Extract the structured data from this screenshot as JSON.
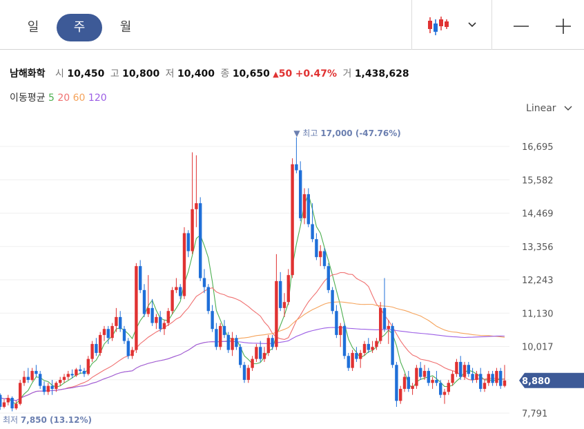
{
  "tabs": [
    {
      "label": "일",
      "active": false
    },
    {
      "label": "주",
      "active": true
    },
    {
      "label": "월",
      "active": false
    }
  ],
  "toolbar": {
    "chart_type_icon": "candlestick-icon",
    "dropdown_icon": "chevron-down-icon",
    "zoom_out_icon": "minus-icon",
    "zoom_in_icon": "plus-icon"
  },
  "quote": {
    "name": "남해화학",
    "open_label": "시",
    "open": "10,450",
    "high_label": "고",
    "high": "10,800",
    "low_label": "저",
    "low": "10,400",
    "close_label": "종",
    "close": "10,650",
    "change_arrow": "▲",
    "change": "50",
    "change_pct": "+0.47%",
    "volume_label": "거",
    "volume": "1,438,628"
  },
  "moving_average": {
    "label": "이동평균",
    "periods": [
      "5",
      "20",
      "60",
      "120"
    ]
  },
  "scale": {
    "label": "Linear"
  },
  "colors": {
    "up": "#e03232",
    "down": "#1f6fd8",
    "ma5": "#4caf50",
    "ma20": "#f07070",
    "ma60": "#f5a35b",
    "ma120": "#9b5de5",
    "accent": "#3d5a97"
  },
  "chart_data": {
    "type": "candlestick",
    "y_ticks": [
      7791,
      8904,
      10017,
      11130,
      12243,
      13356,
      14469,
      15582,
      16695
    ],
    "y_tick_labels": [
      "7,791",
      "8,904",
      "10,017",
      "11,130",
      "12,243",
      "13,356",
      "14,469",
      "15,582",
      "16,695"
    ],
    "ylim": [
      7560,
      17480
    ],
    "current_price": "8,880",
    "current_value": 8880,
    "max_marker": {
      "text": "▼ 최고",
      "value_text": "17,000 (-47.76%)",
      "value": 17000,
      "index": 77
    },
    "min_marker": {
      "text": "최저",
      "value_text": "7,850 (13.12%)",
      "value": 7850,
      "index": 6
    },
    "candles": [
      [
        8050,
        8300,
        7980,
        8200
      ],
      [
        8200,
        8700,
        8150,
        8600
      ],
      [
        8600,
        8750,
        8300,
        8400
      ],
      [
        8400,
        8450,
        7900,
        8000
      ],
      [
        8000,
        8250,
        7950,
        8150
      ],
      [
        8150,
        8400,
        8050,
        8300
      ],
      [
        8300,
        8350,
        7850,
        7950
      ],
      [
        7950,
        8200,
        7900,
        8100
      ],
      [
        8100,
        8900,
        8050,
        8800
      ],
      [
        8800,
        9200,
        8700,
        9000
      ],
      [
        9000,
        9300,
        8800,
        8900
      ],
      [
        8900,
        9300,
        8850,
        9200
      ],
      [
        9200,
        9400,
        9000,
        9100
      ],
      [
        9100,
        9200,
        8600,
        8700
      ],
      [
        8700,
        8850,
        8400,
        8500
      ],
      [
        8500,
        8800,
        8400,
        8700
      ],
      [
        8700,
        8900,
        8400,
        8600
      ],
      [
        8600,
        8850,
        8500,
        8800
      ],
      [
        8800,
        9000,
        8700,
        8900
      ],
      [
        8900,
        9100,
        8800,
        9000
      ],
      [
        9000,
        9200,
        8900,
        9100
      ],
      [
        9100,
        9250,
        8950,
        9050
      ],
      [
        9050,
        9300,
        9000,
        9250
      ],
      [
        9250,
        9400,
        9100,
        9200
      ],
      [
        9200,
        9300,
        9000,
        9100
      ],
      [
        9100,
        9700,
        9050,
        9600
      ],
      [
        9600,
        10200,
        9500,
        10100
      ],
      [
        10100,
        10300,
        9700,
        9800
      ],
      [
        9800,
        10500,
        9700,
        10400
      ],
      [
        10400,
        10700,
        10200,
        10600
      ],
      [
        10600,
        10700,
        10100,
        10300
      ],
      [
        10300,
        10800,
        10200,
        10700
      ],
      [
        10700,
        11300,
        10500,
        11000
      ],
      [
        11000,
        11200,
        10500,
        10600
      ],
      [
        10600,
        10700,
        10100,
        10200
      ],
      [
        10200,
        10300,
        9600,
        9700
      ],
      [
        9700,
        10000,
        9600,
        9900
      ],
      [
        9900,
        12800,
        9800,
        12700
      ],
      [
        12700,
        12900,
        11800,
        11900
      ],
      [
        11900,
        12100,
        11000,
        11100
      ],
      [
        11100,
        12400,
        11000,
        11300
      ],
      [
        11300,
        11600,
        10700,
        10800
      ],
      [
        10800,
        11100,
        10600,
        11000
      ],
      [
        11000,
        11200,
        10500,
        10600
      ],
      [
        10600,
        10900,
        10400,
        10800
      ],
      [
        10800,
        11300,
        10700,
        11200
      ],
      [
        11200,
        12000,
        11100,
        11900
      ],
      [
        11900,
        12300,
        11800,
        12000
      ],
      [
        12000,
        12100,
        11600,
        11700
      ],
      [
        11700,
        14000,
        11600,
        13800
      ],
      [
        13800,
        13900,
        13000,
        13200
      ],
      [
        13200,
        16500,
        13100,
        14600
      ],
      [
        14600,
        16400,
        14000,
        14800
      ],
      [
        14800,
        15000,
        12200,
        12300
      ],
      [
        12300,
        12600,
        11800,
        12000
      ],
      [
        12000,
        12100,
        11100,
        11200
      ],
      [
        11200,
        11400,
        10500,
        10600
      ],
      [
        10600,
        10800,
        9900,
        10000
      ],
      [
        10000,
        10800,
        9900,
        10700
      ],
      [
        10700,
        10900,
        10300,
        10400
      ],
      [
        10400,
        10500,
        9800,
        9900
      ],
      [
        9900,
        10500,
        9700,
        10300
      ],
      [
        10300,
        10400,
        9900,
        10000
      ],
      [
        10000,
        10100,
        9300,
        9400
      ],
      [
        9400,
        9500,
        8800,
        8900
      ],
      [
        8900,
        9400,
        8800,
        9300
      ],
      [
        9300,
        9700,
        9200,
        9600
      ],
      [
        9600,
        10100,
        9500,
        10000
      ],
      [
        10000,
        10200,
        9500,
        9600
      ],
      [
        9600,
        10000,
        9500,
        9800
      ],
      [
        9800,
        10400,
        9700,
        10300
      ],
      [
        10300,
        10400,
        9900,
        10000
      ],
      [
        10000,
        13100,
        9900,
        12200
      ],
      [
        12200,
        12500,
        11200,
        11300
      ],
      [
        11300,
        11800,
        11000,
        11500
      ],
      [
        11500,
        12600,
        11400,
        12400
      ],
      [
        12400,
        16300,
        12300,
        16100
      ],
      [
        16100,
        17000,
        15800,
        15900
      ],
      [
        15900,
        16200,
        14200,
        14300
      ],
      [
        14300,
        15300,
        14100,
        15100
      ],
      [
        15100,
        15300,
        14000,
        14100
      ],
      [
        14100,
        14800,
        13500,
        13600
      ],
      [
        13600,
        13800,
        12900,
        13000
      ],
      [
        13000,
        13400,
        12700,
        13200
      ],
      [
        13200,
        13300,
        12600,
        12700
      ],
      [
        12700,
        12800,
        11800,
        11900
      ],
      [
        11900,
        12000,
        11100,
        11200
      ],
      [
        11200,
        11400,
        10300,
        10400
      ],
      [
        10400,
        10800,
        10000,
        10700
      ],
      [
        10700,
        10800,
        9600,
        9700
      ],
      [
        9700,
        9800,
        9200,
        9300
      ],
      [
        9300,
        9900,
        9200,
        9800
      ],
      [
        9800,
        10000,
        9500,
        9600
      ],
      [
        9600,
        9900,
        9300,
        9800
      ],
      [
        9800,
        10200,
        9700,
        10100
      ],
      [
        10100,
        10300,
        9800,
        9900
      ],
      [
        9900,
        10200,
        9800,
        10000
      ],
      [
        10000,
        10300,
        9900,
        10200
      ],
      [
        10200,
        11500,
        10100,
        11300
      ],
      [
        11300,
        12300,
        10500,
        10600
      ],
      [
        10600,
        10900,
        10100,
        10700
      ],
      [
        10700,
        10800,
        9300,
        9400
      ],
      [
        9400,
        9500,
        8000,
        8200
      ],
      [
        8200,
        8700,
        8100,
        8600
      ],
      [
        8600,
        9100,
        8500,
        9000
      ],
      [
        9000,
        9200,
        8500,
        8600
      ],
      [
        8600,
        8800,
        8400,
        8700
      ],
      [
        8700,
        9400,
        8600,
        9300
      ],
      [
        9300,
        9500,
        8900,
        9000
      ],
      [
        9000,
        9400,
        8900,
        9200
      ],
      [
        9200,
        9300,
        8700,
        8800
      ],
      [
        8800,
        9000,
        8600,
        8900
      ],
      [
        8900,
        9200,
        8700,
        8800
      ],
      [
        8800,
        8900,
        8300,
        8400
      ],
      [
        8400,
        8600,
        8100,
        8500
      ],
      [
        8500,
        8900,
        8400,
        8800
      ],
      [
        8800,
        9200,
        8700,
        9100
      ],
      [
        9100,
        9600,
        9000,
        9500
      ],
      [
        9500,
        9700,
        8900,
        9000
      ],
      [
        9000,
        9500,
        8900,
        9400
      ],
      [
        9400,
        9500,
        9000,
        9100
      ],
      [
        9100,
        9300,
        8800,
        8900
      ],
      [
        8900,
        9200,
        8800,
        9100
      ],
      [
        9100,
        9300,
        8500,
        8600
      ],
      [
        8600,
        8900,
        8500,
        8800
      ],
      [
        8800,
        9200,
        8700,
        9100
      ],
      [
        9100,
        9200,
        8700,
        8800
      ],
      [
        8800,
        9300,
        8700,
        9200
      ],
      [
        9200,
        9300,
        8600,
        8700
      ],
      [
        8700,
        9400,
        8650,
        8880
      ]
    ]
  }
}
